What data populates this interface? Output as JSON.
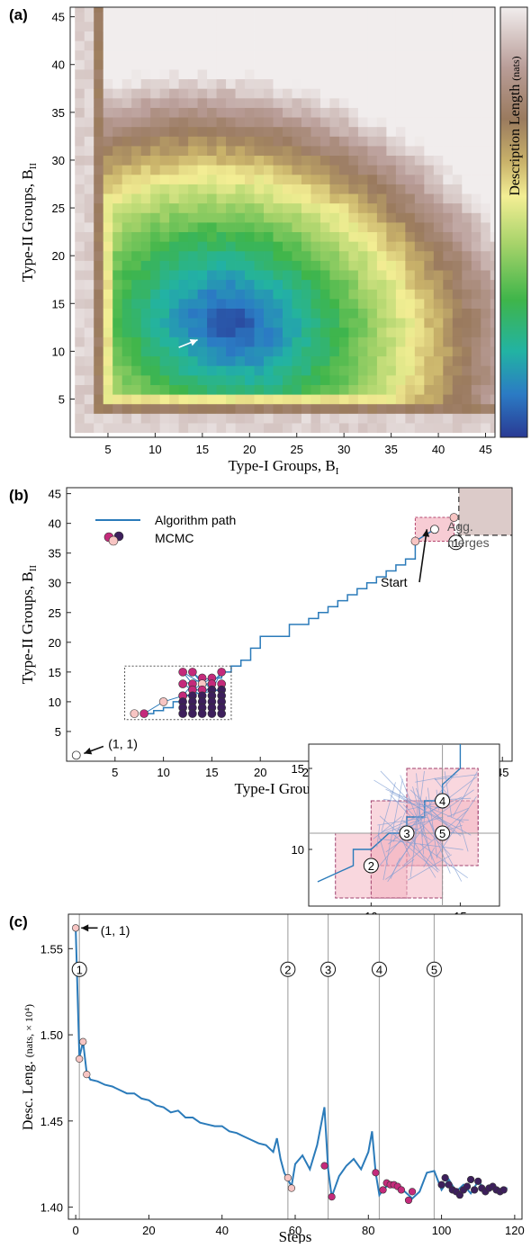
{
  "panels": {
    "a": {
      "label": "(a)",
      "xlabel": "Type-I Groups, B",
      "xlabel_sub": "I",
      "ylabel": "Type-II Groups, B",
      "ylabel_sub": "II",
      "colorbar_label": "Description Length",
      "colorbar_unit": "(nats)",
      "xticks": [
        5,
        10,
        15,
        20,
        25,
        30,
        35,
        40,
        45
      ],
      "yticks": [
        5,
        10,
        15,
        20,
        25,
        30,
        35,
        40,
        45
      ]
    },
    "b": {
      "label": "(b)",
      "xlabel": "Type-I Groups, B",
      "xlabel_sub": "I",
      "ylabel": "Type-II Groups, B",
      "ylabel_sub": "II",
      "legend_path": "Algorithm path",
      "legend_mcmc": "MCMC",
      "start_label": "Start",
      "agg_label_1": "Agg.",
      "agg_label_2": "merges",
      "origin_label": "(1, 1)",
      "xticks": [
        5,
        10,
        15,
        20,
        25,
        30,
        35,
        40,
        45
      ],
      "yticks": [
        5,
        10,
        15,
        20,
        25,
        30,
        35,
        40,
        45
      ],
      "inset_xticks": [
        10,
        15
      ],
      "inset_yticks": [
        10,
        15
      ],
      "markers": [
        "1",
        "2",
        "3",
        "4",
        "5"
      ]
    },
    "c": {
      "label": "(c)",
      "xlabel": "Steps",
      "ylabel": "Desc. Leng.",
      "ylabel_unit": "(nats, × 10⁴)",
      "origin_label": "(1, 1)",
      "xticks": [
        0,
        20,
        40,
        60,
        80,
        100,
        120
      ],
      "yticks": [
        "1.40",
        "1.45",
        "1.50",
        "1.55"
      ],
      "markers": [
        "1",
        "2",
        "3",
        "4",
        "5"
      ]
    }
  },
  "colors": {
    "path": "#2b7bba",
    "mcmc_light": "#f7c5c3",
    "mcmc_mid": "#c42a7b",
    "mcmc_dark": "#3d1f5c",
    "shade_pink": "#f4b7c2",
    "shade_brown": "#dccbc9"
  },
  "chart_data": [
    {
      "panel": "a",
      "type": "heatmap",
      "xlabel": "Type-I Groups, B_I",
      "ylabel": "Type-II Groups, B_II",
      "xlim": [
        1,
        46
      ],
      "ylim": [
        1,
        46
      ],
      "z_label": "Description Length (nats)",
      "minimum_at": [
        14,
        11
      ],
      "low_region_center": [
        18,
        13
      ],
      "note": "Low description length (blue) near B_I≈12–25, B_II≈8–20; rising through green, yellow, brown, to near-white at edges"
    },
    {
      "panel": "b",
      "type": "line",
      "xlabel": "Type-I Groups, B_I",
      "ylabel": "Type-II Groups, B_II",
      "xlim": [
        0,
        46
      ],
      "ylim": [
        0,
        46
      ],
      "series": [
        {
          "name": "Algorithm path",
          "x": [
            36,
            36,
            35,
            35,
            34,
            34,
            33,
            33,
            32,
            32,
            31,
            31,
            30,
            30,
            29,
            29,
            28,
            28,
            27,
            27,
            26,
            26,
            25,
            25,
            23,
            23,
            20,
            20,
            19,
            19,
            18,
            18,
            17,
            17,
            16,
            16,
            15,
            15,
            14,
            14,
            13,
            13,
            12,
            12,
            11,
            11,
            10,
            10,
            9,
            9,
            8
          ],
          "y": [
            37,
            34,
            34,
            33,
            33,
            32,
            32,
            31,
            31,
            30,
            30,
            29,
            29,
            28,
            28,
            27,
            27,
            26,
            26,
            25,
            25,
            24,
            24,
            23,
            23,
            21,
            21,
            19,
            19,
            17,
            17,
            16,
            16,
            15,
            15,
            14,
            14,
            13,
            13,
            12,
            12,
            11,
            11,
            10,
            10,
            9,
            9,
            8.5,
            8.5,
            8,
            8
          ]
        }
      ],
      "mcmc_points": [
        {
          "x": 38,
          "y": 39,
          "tone": "light"
        },
        {
          "x": 36,
          "y": 37,
          "tone": "light"
        },
        {
          "x": 40,
          "y": 41,
          "tone": "light"
        },
        {
          "x": 7,
          "y": 8,
          "tone": "light"
        },
        {
          "x": 8,
          "y": 8,
          "tone": "mid"
        },
        {
          "x": 10,
          "y": 10,
          "tone": "light"
        },
        {
          "x": 12,
          "y": 11,
          "tone": "light"
        },
        {
          "x": 12,
          "y": 15,
          "tone": "mid"
        },
        {
          "x": 13,
          "y": 15,
          "tone": "mid"
        },
        {
          "x": 16,
          "y": 15,
          "tone": "mid"
        },
        {
          "x": 14,
          "y": 14,
          "tone": "mid"
        },
        {
          "x": 15,
          "y": 14,
          "tone": "mid"
        },
        {
          "x": 12,
          "y": 13,
          "tone": "mid"
        },
        {
          "x": 13,
          "y": 13,
          "tone": "mid"
        },
        {
          "x": 14,
          "y": 13,
          "tone": "light"
        },
        {
          "x": 15,
          "y": 13,
          "tone": "mid"
        },
        {
          "x": 16,
          "y": 13,
          "tone": "mid"
        },
        {
          "x": 13,
          "y": 12,
          "tone": "mid"
        },
        {
          "x": 14,
          "y": 12,
          "tone": "mid"
        },
        {
          "x": 15,
          "y": 12,
          "tone": "dark"
        },
        {
          "x": 16,
          "y": 12,
          "tone": "dark"
        },
        {
          "x": 12,
          "y": 11,
          "tone": "mid"
        },
        {
          "x": 13,
          "y": 11,
          "tone": "dark"
        },
        {
          "x": 14,
          "y": 11,
          "tone": "dark"
        },
        {
          "x": 15,
          "y": 11,
          "tone": "dark"
        },
        {
          "x": 16,
          "y": 11,
          "tone": "dark"
        },
        {
          "x": 12,
          "y": 10,
          "tone": "dark"
        },
        {
          "x": 13,
          "y": 10,
          "tone": "dark"
        },
        {
          "x": 14,
          "y": 10,
          "tone": "dark"
        },
        {
          "x": 15,
          "y": 10,
          "tone": "dark"
        },
        {
          "x": 16,
          "y": 10,
          "tone": "dark"
        },
        {
          "x": 12,
          "y": 9,
          "tone": "dark"
        },
        {
          "x": 13,
          "y": 9,
          "tone": "dark"
        },
        {
          "x": 14,
          "y": 9,
          "tone": "dark"
        },
        {
          "x": 15,
          "y": 9,
          "tone": "dark"
        },
        {
          "x": 16,
          "y": 9,
          "tone": "dark"
        },
        {
          "x": 12,
          "y": 8,
          "tone": "dark"
        },
        {
          "x": 13,
          "y": 8,
          "tone": "dark"
        },
        {
          "x": 14,
          "y": 8,
          "tone": "dark"
        },
        {
          "x": 15,
          "y": 8,
          "tone": "dark"
        },
        {
          "x": 16,
          "y": 8,
          "tone": "dark"
        }
      ],
      "start_point": [
        38,
        39
      ],
      "origin_point": [
        1,
        1
      ],
      "zoom_box": {
        "x": [
          6,
          17
        ],
        "y": [
          7,
          16
        ]
      }
    },
    {
      "panel": "c",
      "type": "line",
      "xlabel": "Steps",
      "ylabel": "Desc. Leng. (nats, × 10^4)",
      "xlim": [
        -2,
        122
      ],
      "ylim": [
        1.393,
        1.57
      ],
      "series": [
        {
          "name": "Algorithm path",
          "x": [
            0,
            1,
            2,
            3,
            4,
            6,
            8,
            10,
            12,
            14,
            16,
            18,
            20,
            22,
            24,
            26,
            28,
            30,
            32,
            34,
            36,
            38,
            40,
            42,
            44,
            46,
            48,
            50,
            52,
            54,
            55,
            56,
            57,
            58,
            59,
            60,
            62,
            64,
            66,
            68,
            69,
            70,
            72,
            74,
            76,
            78,
            80,
            81,
            82,
            83,
            84
          ],
          "y": [
            1.562,
            1.487,
            1.496,
            1.478,
            1.474,
            1.473,
            1.471,
            1.47,
            1.468,
            1.466,
            1.466,
            1.463,
            1.462,
            1.459,
            1.458,
            1.455,
            1.456,
            1.452,
            1.452,
            1.449,
            1.448,
            1.447,
            1.447,
            1.444,
            1.443,
            1.441,
            1.439,
            1.437,
            1.436,
            1.432,
            1.44,
            1.428,
            1.42,
            1.416,
            1.412,
            1.425,
            1.43,
            1.422,
            1.436,
            1.458,
            1.422,
            1.406,
            1.418,
            1.424,
            1.428,
            1.422,
            1.432,
            1.444,
            1.42,
            1.407,
            1.41
          ]
        },
        {
          "name": "MCMC tail",
          "x": [
            84,
            86,
            88,
            90,
            92,
            94,
            96,
            98,
            100,
            102,
            104,
            106,
            108,
            110,
            112,
            114,
            116,
            118
          ],
          "y": [
            1.41,
            1.414,
            1.412,
            1.409,
            1.405,
            1.409,
            1.42,
            1.421,
            1.41,
            1.416,
            1.409,
            1.413,
            1.408,
            1.415,
            1.41,
            1.412,
            1.41,
            1.411
          ]
        }
      ],
      "mcmc_points": [
        {
          "x": 0,
          "y": 1.562,
          "tone": "light"
        },
        {
          "x": 1,
          "y": 1.486,
          "tone": "light"
        },
        {
          "x": 2,
          "y": 1.496,
          "tone": "light"
        },
        {
          "x": 3,
          "y": 1.477,
          "tone": "light"
        },
        {
          "x": 58,
          "y": 1.417,
          "tone": "light"
        },
        {
          "x": 59,
          "y": 1.411,
          "tone": "light"
        },
        {
          "x": 68,
          "y": 1.424,
          "tone": "mid"
        },
        {
          "x": 70,
          "y": 1.406,
          "tone": "mid"
        },
        {
          "x": 82,
          "y": 1.42,
          "tone": "mid"
        },
        {
          "x": 84,
          "y": 1.41,
          "tone": "mid"
        },
        {
          "x": 85,
          "y": 1.414,
          "tone": "mid"
        },
        {
          "x": 86,
          "y": 1.413,
          "tone": "mid"
        },
        {
          "x": 87,
          "y": 1.413,
          "tone": "mid"
        },
        {
          "x": 88,
          "y": 1.412,
          "tone": "mid"
        },
        {
          "x": 89,
          "y": 1.41,
          "tone": "mid"
        },
        {
          "x": 91,
          "y": 1.404,
          "tone": "mid"
        },
        {
          "x": 92,
          "y": 1.409,
          "tone": "mid"
        },
        {
          "x": 100,
          "y": 1.413,
          "tone": "dark"
        },
        {
          "x": 101,
          "y": 1.417,
          "tone": "dark"
        },
        {
          "x": 102,
          "y": 1.413,
          "tone": "dark"
        },
        {
          "x": 103,
          "y": 1.41,
          "tone": "dark"
        },
        {
          "x": 104,
          "y": 1.409,
          "tone": "dark"
        },
        {
          "x": 105,
          "y": 1.407,
          "tone": "dark"
        },
        {
          "x": 106,
          "y": 1.41,
          "tone": "dark"
        },
        {
          "x": 107,
          "y": 1.412,
          "tone": "dark"
        },
        {
          "x": 108,
          "y": 1.416,
          "tone": "dark"
        },
        {
          "x": 109,
          "y": 1.41,
          "tone": "dark"
        },
        {
          "x": 110,
          "y": 1.415,
          "tone": "dark"
        },
        {
          "x": 111,
          "y": 1.411,
          "tone": "dark"
        },
        {
          "x": 112,
          "y": 1.409,
          "tone": "dark"
        },
        {
          "x": 113,
          "y": 1.411,
          "tone": "dark"
        },
        {
          "x": 114,
          "y": 1.412,
          "tone": "dark"
        },
        {
          "x": 115,
          "y": 1.41,
          "tone": "dark"
        },
        {
          "x": 116,
          "y": 1.409,
          "tone": "dark"
        },
        {
          "x": 117,
          "y": 1.41,
          "tone": "dark"
        }
      ],
      "marker_steps": [
        1,
        58,
        69,
        83,
        98
      ]
    }
  ]
}
